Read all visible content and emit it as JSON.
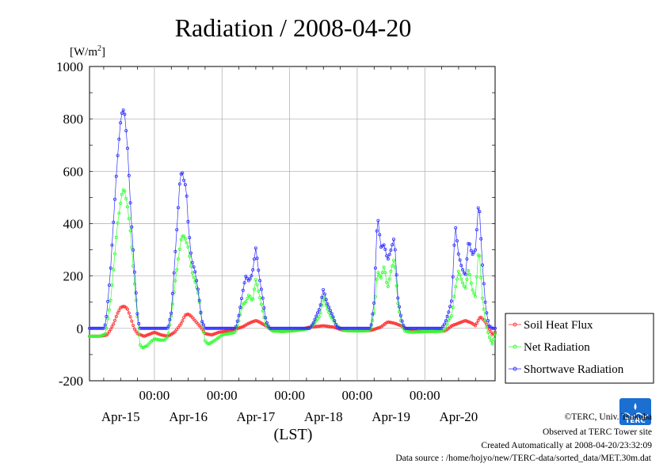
{
  "title": "Radiation / 2008-04-20",
  "chart_data": {
    "type": "line",
    "title": "Radiation / 2008-04-20",
    "ylabel_unit": {
      "main": "[W/m",
      "sup": "2",
      "close": "]"
    },
    "xlabel": "(LST)",
    "ylim": [
      -200,
      1000
    ],
    "yticks": [
      "1000",
      "800",
      "600",
      "400",
      "200",
      "0",
      "-200"
    ],
    "xlim_days": [
      -0.96,
      5.04
    ],
    "time_tick_labels": [
      "00:00",
      "00:00",
      "00:00",
      "00:00",
      "00:00"
    ],
    "date_labels": [
      "Apr-15",
      "Apr-16",
      "Apr-17",
      "Apr-18",
      "Apr-19",
      "Apr-20"
    ],
    "grid": true,
    "legend_position": "right",
    "series": [
      {
        "name": "Soil Heat Flux",
        "color": "#ff3030",
        "points": [
          [
            -1.0,
            -30
          ],
          [
            -0.8,
            -30
          ],
          [
            -0.7,
            -25
          ],
          [
            -0.65,
            -5
          ],
          [
            -0.6,
            20
          ],
          [
            -0.55,
            55
          ],
          [
            -0.5,
            80
          ],
          [
            -0.45,
            85
          ],
          [
            -0.4,
            75
          ],
          [
            -0.35,
            40
          ],
          [
            -0.3,
            0
          ],
          [
            -0.25,
            -20
          ],
          [
            -0.2,
            -25
          ],
          [
            -0.15,
            -30
          ],
          [
            -0.1,
            -25
          ],
          [
            -0.05,
            -20
          ],
          [
            0.0,
            -15
          ],
          [
            0.05,
            -20
          ],
          [
            0.1,
            -25
          ],
          [
            0.2,
            -30
          ],
          [
            0.3,
            -15
          ],
          [
            0.4,
            20
          ],
          [
            0.45,
            50
          ],
          [
            0.5,
            55
          ],
          [
            0.55,
            45
          ],
          [
            0.6,
            30
          ],
          [
            0.7,
            0
          ],
          [
            0.75,
            -20
          ],
          [
            0.85,
            -25
          ],
          [
            0.95,
            -15
          ],
          [
            1.1,
            -10
          ],
          [
            1.3,
            5
          ],
          [
            1.4,
            20
          ],
          [
            1.5,
            30
          ],
          [
            1.55,
            25
          ],
          [
            1.65,
            10
          ],
          [
            1.75,
            -10
          ],
          [
            1.9,
            -12
          ],
          [
            2.1,
            -8
          ],
          [
            2.3,
            5
          ],
          [
            2.5,
            10
          ],
          [
            2.65,
            5
          ],
          [
            2.8,
            -8
          ],
          [
            3.0,
            -10
          ],
          [
            3.2,
            -8
          ],
          [
            3.35,
            5
          ],
          [
            3.45,
            25
          ],
          [
            3.55,
            20
          ],
          [
            3.65,
            10
          ],
          [
            3.75,
            -5
          ],
          [
            3.9,
            -12
          ],
          [
            4.1,
            -12
          ],
          [
            4.3,
            -10
          ],
          [
            4.4,
            10
          ],
          [
            4.5,
            20
          ],
          [
            4.6,
            30
          ],
          [
            4.7,
            20
          ],
          [
            4.75,
            10
          ],
          [
            4.82,
            45
          ],
          [
            4.88,
            30
          ],
          [
            4.95,
            0
          ],
          [
            5.0,
            -25
          ],
          [
            5.04,
            -15
          ]
        ]
      },
      {
        "name": "Net Radiation",
        "color": "#30ff30",
        "points": [
          [
            -1.0,
            -30
          ],
          [
            -0.8,
            -30
          ],
          [
            -0.72,
            -20
          ],
          [
            -0.7,
            20
          ],
          [
            -0.65,
            100
          ],
          [
            -0.6,
            240
          ],
          [
            -0.55,
            390
          ],
          [
            -0.5,
            480
          ],
          [
            -0.47,
            530
          ],
          [
            -0.44,
            525
          ],
          [
            -0.4,
            470
          ],
          [
            -0.35,
            360
          ],
          [
            -0.3,
            190
          ],
          [
            -0.25,
            40
          ],
          [
            -0.22,
            -60
          ],
          [
            -0.18,
            -75
          ],
          [
            -0.1,
            -65
          ],
          [
            -0.05,
            -50
          ],
          [
            0.0,
            -40
          ],
          [
            0.1,
            -45
          ],
          [
            0.15,
            -45
          ],
          [
            0.2,
            -30
          ],
          [
            0.25,
            50
          ],
          [
            0.3,
            160
          ],
          [
            0.35,
            260
          ],
          [
            0.4,
            350
          ],
          [
            0.43,
            355
          ],
          [
            0.46,
            340
          ],
          [
            0.5,
            310
          ],
          [
            0.55,
            220
          ],
          [
            0.6,
            180
          ],
          [
            0.65,
            130
          ],
          [
            0.7,
            30
          ],
          [
            0.75,
            -50
          ],
          [
            0.8,
            -60
          ],
          [
            0.9,
            -45
          ],
          [
            1.0,
            -25
          ],
          [
            1.1,
            -20
          ],
          [
            1.2,
            -15
          ],
          [
            1.25,
            30
          ],
          [
            1.3,
            90
          ],
          [
            1.35,
            100
          ],
          [
            1.4,
            130
          ],
          [
            1.45,
            100
          ],
          [
            1.5,
            190
          ],
          [
            1.55,
            130
          ],
          [
            1.6,
            70
          ],
          [
            1.65,
            10
          ],
          [
            1.75,
            -10
          ],
          [
            1.9,
            -12
          ],
          [
            2.1,
            -8
          ],
          [
            2.2,
            -5
          ],
          [
            2.3,
            0
          ],
          [
            2.4,
            30
          ],
          [
            2.45,
            50
          ],
          [
            2.5,
            120
          ],
          [
            2.55,
            80
          ],
          [
            2.6,
            50
          ],
          [
            2.65,
            30
          ],
          [
            2.7,
            10
          ],
          [
            2.8,
            -8
          ],
          [
            3.0,
            -10
          ],
          [
            3.1,
            -10
          ],
          [
            3.2,
            -5
          ],
          [
            3.25,
            60
          ],
          [
            3.3,
            220
          ],
          [
            3.35,
            190
          ],
          [
            3.4,
            240
          ],
          [
            3.45,
            150
          ],
          [
            3.5,
            220
          ],
          [
            3.55,
            270
          ],
          [
            3.6,
            100
          ],
          [
            3.65,
            20
          ],
          [
            3.7,
            -10
          ],
          [
            3.8,
            -15
          ],
          [
            4.0,
            -12
          ],
          [
            4.2,
            -12
          ],
          [
            4.3,
            -8
          ],
          [
            4.35,
            30
          ],
          [
            4.4,
            50
          ],
          [
            4.45,
            150
          ],
          [
            4.5,
            220
          ],
          [
            4.55,
            180
          ],
          [
            4.6,
            150
          ],
          [
            4.65,
            230
          ],
          [
            4.7,
            150
          ],
          [
            4.75,
            120
          ],
          [
            4.8,
            320
          ],
          [
            4.85,
            120
          ],
          [
            4.9,
            20
          ],
          [
            4.95,
            -30
          ],
          [
            5.0,
            -60
          ],
          [
            5.04,
            -20
          ]
        ]
      },
      {
        "name": "Shortwave Radiation",
        "color": "#3030ff",
        "points": [
          [
            -1.0,
            0
          ],
          [
            -0.75,
            0
          ],
          [
            -0.72,
            20
          ],
          [
            -0.7,
            70
          ],
          [
            -0.65,
            220
          ],
          [
            -0.6,
            430
          ],
          [
            -0.55,
            640
          ],
          [
            -0.52,
            730
          ],
          [
            -0.5,
            790
          ],
          [
            -0.47,
            840
          ],
          [
            -0.44,
            820
          ],
          [
            -0.4,
            700
          ],
          [
            -0.35,
            450
          ],
          [
            -0.3,
            240
          ],
          [
            -0.25,
            50
          ],
          [
            -0.22,
            0
          ],
          [
            0.0,
            0
          ],
          [
            0.2,
            0
          ],
          [
            0.25,
            60
          ],
          [
            0.3,
            250
          ],
          [
            0.35,
            450
          ],
          [
            0.38,
            580
          ],
          [
            0.41,
            600
          ],
          [
            0.44,
            560
          ],
          [
            0.47,
            540
          ],
          [
            0.5,
            400
          ],
          [
            0.55,
            260
          ],
          [
            0.6,
            220
          ],
          [
            0.65,
            140
          ],
          [
            0.7,
            30
          ],
          [
            0.75,
            0
          ],
          [
            1.0,
            0
          ],
          [
            1.2,
            0
          ],
          [
            1.25,
            50
          ],
          [
            1.3,
            130
          ],
          [
            1.35,
            200
          ],
          [
            1.4,
            180
          ],
          [
            1.45,
            210
          ],
          [
            1.5,
            310
          ],
          [
            1.55,
            200
          ],
          [
            1.6,
            120
          ],
          [
            1.65,
            30
          ],
          [
            1.7,
            0
          ],
          [
            2.0,
            0
          ],
          [
            2.3,
            0
          ],
          [
            2.35,
            20
          ],
          [
            2.4,
            50
          ],
          [
            2.45,
            80
          ],
          [
            2.5,
            150
          ],
          [
            2.55,
            100
          ],
          [
            2.6,
            70
          ],
          [
            2.65,
            40
          ],
          [
            2.7,
            5
          ],
          [
            2.75,
            0
          ],
          [
            3.0,
            0
          ],
          [
            3.2,
            0
          ],
          [
            3.25,
            100
          ],
          [
            3.3,
            440
          ],
          [
            3.35,
            310
          ],
          [
            3.4,
            320
          ],
          [
            3.45,
            260
          ],
          [
            3.5,
            300
          ],
          [
            3.55,
            350
          ],
          [
            3.6,
            120
          ],
          [
            3.65,
            40
          ],
          [
            3.7,
            0
          ],
          [
            4.0,
            0
          ],
          [
            4.25,
            0
          ],
          [
            4.3,
            20
          ],
          [
            4.35,
            60
          ],
          [
            4.4,
            110
          ],
          [
            4.45,
            400
          ],
          [
            4.5,
            280
          ],
          [
            4.55,
            230
          ],
          [
            4.6,
            200
          ],
          [
            4.65,
            340
          ],
          [
            4.7,
            280
          ],
          [
            4.75,
            300
          ],
          [
            4.8,
            500
          ],
          [
            4.85,
            250
          ],
          [
            4.9,
            80
          ],
          [
            4.95,
            10
          ],
          [
            5.0,
            0
          ],
          [
            5.04,
            0
          ]
        ]
      }
    ]
  },
  "credits": {
    "copyright": "©TERC, Univ. Tsukuba",
    "observed": "Observed at TERC Tower site",
    "created": "Created Automatically at 2008-04-20/23:32:09",
    "source": "Data source : /home/hojyo/new/TERC-data/sorted_data/MET.30m.dat"
  },
  "logo": {
    "text": "TERC"
  }
}
